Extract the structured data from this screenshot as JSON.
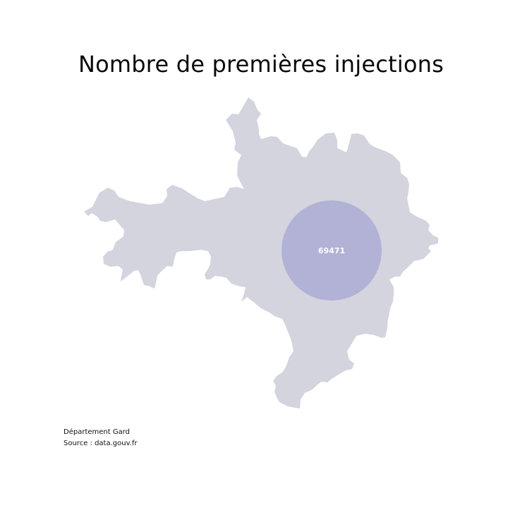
{
  "title": "Nombre de premières injections",
  "map": {
    "region_color": "#d4d4df",
    "bubble_color": "#b0b0d6",
    "bubble_label_color": "#ffffff",
    "bubble_value": "69471"
  },
  "caption": {
    "line1": "Département Gard",
    "line2": "Source : data.gouv.fr"
  }
}
